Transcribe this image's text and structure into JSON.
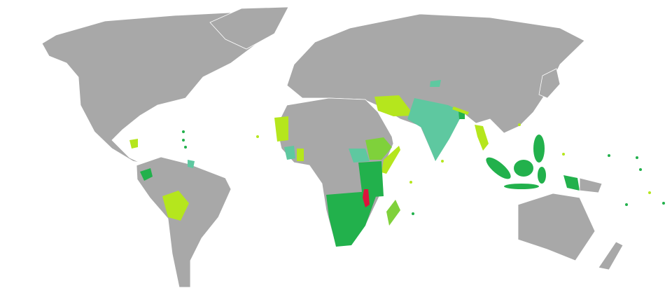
{
  "map": {
    "colors": {
      "ocean": "#ffffff",
      "default_land": "#a8a8a8",
      "home_country": "#dc143c",
      "dark_green": "#22b14c",
      "medium_green": "#7fd13b",
      "lime": "#b5e61d",
      "teal": "#5ec8a0"
    }
  }
}
